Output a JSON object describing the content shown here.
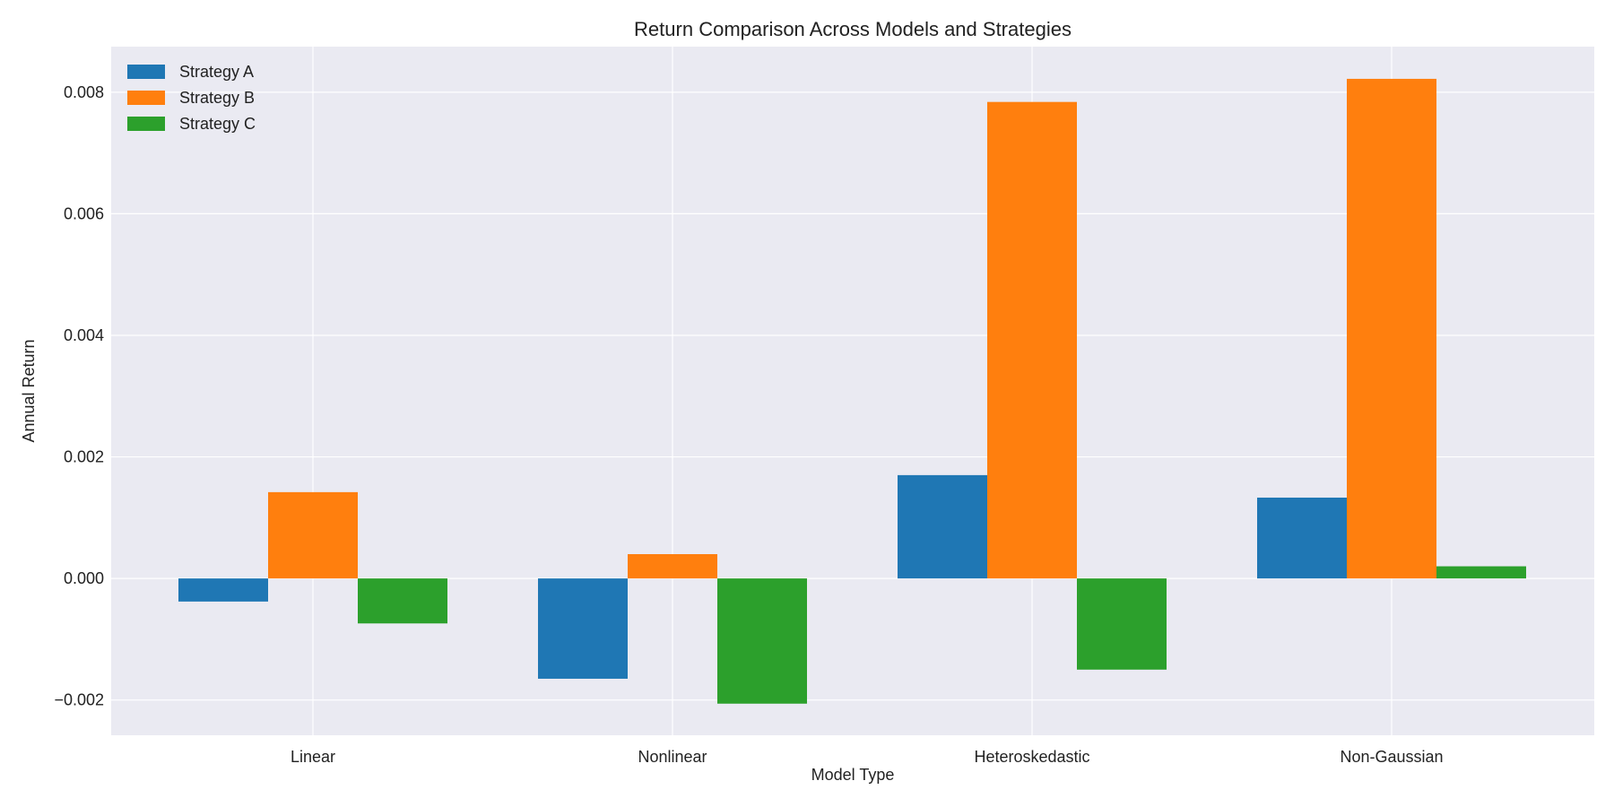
{
  "chart_data": {
    "type": "bar",
    "title": "Return Comparison Across Models and Strategies",
    "xlabel": "Model Type",
    "ylabel": "Annual Return",
    "categories": [
      "Linear",
      "Nonlinear",
      "Heteroskedastic",
      "Non-Gaussian"
    ],
    "series": [
      {
        "name": "Strategy A",
        "color": "#1f77b4",
        "values": [
          -0.00038,
          -0.00165,
          0.0017,
          0.00133
        ]
      },
      {
        "name": "Strategy B",
        "color": "#ff7f0e",
        "values": [
          0.00142,
          0.0004,
          0.00784,
          0.00822
        ]
      },
      {
        "name": "Strategy C",
        "color": "#2ca02c",
        "values": [
          -0.00074,
          -0.00206,
          -0.0015,
          0.0002
        ]
      }
    ],
    "ylim": [
      -0.00258,
      0.00875
    ],
    "yticks": [
      -0.002,
      0.0,
      0.002,
      0.004,
      0.006,
      0.008
    ],
    "ytick_labels": [
      "−0.002",
      "0.000",
      "0.002",
      "0.004",
      "0.006",
      "0.008"
    ],
    "grid": true,
    "legend_position": "top-left",
    "background_color": "#eaeaf2",
    "grid_color": "#ffffff"
  }
}
